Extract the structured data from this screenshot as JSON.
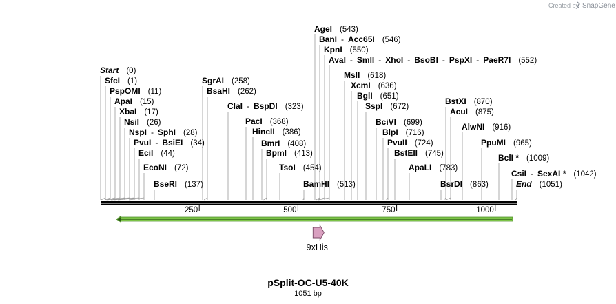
{
  "credit": {
    "prefix": "Created by",
    "brand": "SnapGene"
  },
  "plasmid": {
    "name": "pSplit-OC-U5-40K",
    "length_label": "1051 bp",
    "length_bp": 1051
  },
  "ruler": {
    "ticks": [
      250,
      500,
      750,
      1000
    ]
  },
  "features": [
    {
      "name": "9xHis",
      "color": "#d9a0c0",
      "start": 533,
      "end": 560
    },
    {
      "name": "",
      "color": "#7cc447",
      "start": 40,
      "end": 1051,
      "direction": "reverse"
    }
  ],
  "sites": [
    {
      "names": [
        "Start"
      ],
      "position_label": "(0)",
      "bp": 0,
      "italic": true
    },
    {
      "names": [
        "SfcI"
      ],
      "position_label": "(1)",
      "bp": 1
    },
    {
      "names": [
        "PspOMI"
      ],
      "position_label": "(11)",
      "bp": 11
    },
    {
      "names": [
        "ApaI"
      ],
      "position_label": "(15)",
      "bp": 15
    },
    {
      "names": [
        "XbaI"
      ],
      "position_label": "(17)",
      "bp": 17
    },
    {
      "names": [
        "NsiI"
      ],
      "position_label": "(26)",
      "bp": 26
    },
    {
      "names": [
        "NspI",
        "SphI"
      ],
      "position_label": "(28)",
      "bp": 28
    },
    {
      "names": [
        "PvuI",
        "BsiEI"
      ],
      "position_label": "(34)",
      "bp": 34
    },
    {
      "names": [
        "EciI"
      ],
      "position_label": "(44)",
      "bp": 44
    },
    {
      "names": [
        "EcoNI"
      ],
      "position_label": "(72)",
      "bp": 72
    },
    {
      "names": [
        "BseRI"
      ],
      "position_label": "(137)",
      "bp": 137
    },
    {
      "names": [
        "SgrAI"
      ],
      "position_label": "(258)",
      "bp": 258
    },
    {
      "names": [
        "BsaHI"
      ],
      "position_label": "(262)",
      "bp": 262
    },
    {
      "names": [
        "ClaI",
        "BspDI"
      ],
      "position_label": "(323)",
      "bp": 323
    },
    {
      "names": [
        "PacI"
      ],
      "position_label": "(368)",
      "bp": 368
    },
    {
      "names": [
        "HincII"
      ],
      "position_label": "(386)",
      "bp": 386
    },
    {
      "names": [
        "BmrI"
      ],
      "position_label": "(408)",
      "bp": 408
    },
    {
      "names": [
        "BpmI"
      ],
      "position_label": "(413)",
      "bp": 413
    },
    {
      "names": [
        "TsoI"
      ],
      "position_label": "(454)",
      "bp": 454
    },
    {
      "names": [
        "BamHI"
      ],
      "position_label": "(513)",
      "bp": 513
    },
    {
      "names": [
        "AgeI"
      ],
      "position_label": "(543)",
      "bp": 543
    },
    {
      "names": [
        "BanI",
        "Acc65I"
      ],
      "position_label": "(546)",
      "bp": 546
    },
    {
      "names": [
        "KpnI"
      ],
      "position_label": "(550)",
      "bp": 550
    },
    {
      "names": [
        "AvaI",
        "SmlI",
        "XhoI",
        "BsoBI",
        "PspXI",
        "PaeR7I"
      ],
      "position_label": "(552)",
      "bp": 552
    },
    {
      "names": [
        "MslI"
      ],
      "position_label": "(618)",
      "bp": 618
    },
    {
      "names": [
        "XcmI"
      ],
      "position_label": "(636)",
      "bp": 636
    },
    {
      "names": [
        "BglI"
      ],
      "position_label": "(651)",
      "bp": 651
    },
    {
      "names": [
        "SspI"
      ],
      "position_label": "(672)",
      "bp": 672
    },
    {
      "names": [
        "BciVI"
      ],
      "position_label": "(699)",
      "bp": 699
    },
    {
      "names": [
        "BlpI"
      ],
      "position_label": "(716)",
      "bp": 716
    },
    {
      "names": [
        "PvuII"
      ],
      "position_label": "(724)",
      "bp": 724
    },
    {
      "names": [
        "BstEII"
      ],
      "position_label": "(745)",
      "bp": 745
    },
    {
      "names": [
        "ApaLI"
      ],
      "position_label": "(783)",
      "bp": 783
    },
    {
      "names": [
        "BsrDI"
      ],
      "position_label": "(863)",
      "bp": 863
    },
    {
      "names": [
        "BstXI"
      ],
      "position_label": "(870)",
      "bp": 870
    },
    {
      "names": [
        "AcuI"
      ],
      "position_label": "(875)",
      "bp": 875
    },
    {
      "names": [
        "AlwNI"
      ],
      "position_label": "(916)",
      "bp": 916
    },
    {
      "names": [
        "PpuMI"
      ],
      "position_label": "(965)",
      "bp": 965
    },
    {
      "names": [
        "BclI *"
      ],
      "position_label": "(1009)",
      "bp": 1009
    },
    {
      "names": [
        "CsiI",
        "SexAI *"
      ],
      "position_label": "(1042)",
      "bp": 1042
    },
    {
      "names": [
        "End"
      ],
      "position_label": "(1051)",
      "bp": 1051,
      "italic": true
    }
  ]
}
